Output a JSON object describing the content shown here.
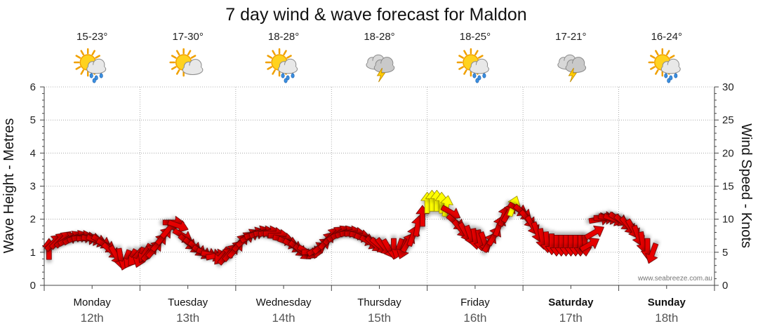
{
  "chart_data": {
    "type": "line",
    "title": "7 day wind & wave forecast for Maldon",
    "ylabel_left": "Wave Height - Metres",
    "ylabel_right": "Wind Speed - Knots",
    "ylim_left": [
      0,
      6
    ],
    "ylim_right": [
      0,
      30
    ],
    "yticks_left": [
      "0",
      "1",
      "2",
      "3",
      "4",
      "5",
      "6"
    ],
    "yticks_right": [
      "0",
      "5",
      "10",
      "15",
      "20",
      "25",
      "30"
    ],
    "grid": true,
    "credit": "www.seabreeze.com.au",
    "days": [
      {
        "name": "Monday",
        "date": "12th",
        "temp": "15-23°",
        "icon": "sun-cloud-rain-icon",
        "bold": false
      },
      {
        "name": "Tuesday",
        "date": "13th",
        "temp": "17-30°",
        "icon": "sun-cloud-icon",
        "bold": false
      },
      {
        "name": "Wednesday",
        "date": "14th",
        "temp": "18-28°",
        "icon": "sun-cloud-rain-icon",
        "bold": false
      },
      {
        "name": "Thursday",
        "date": "15th",
        "temp": "18-28°",
        "icon": "storm-icon",
        "bold": false
      },
      {
        "name": "Friday",
        "date": "16th",
        "temp": "18-25°",
        "icon": "sun-cloud-rain-icon",
        "bold": false
      },
      {
        "name": "Saturday",
        "date": "17th",
        "temp": "17-21°",
        "icon": "storm-icon",
        "bold": true
      },
      {
        "name": "Sunday",
        "date": "18th",
        "temp": "16-24°",
        "icon": "sun-cloud-rain-icon",
        "bold": true
      }
    ],
    "wind_series": {
      "name": "Wind Speed",
      "colors": {
        "normal": "#e60000",
        "strong": "#ffff00",
        "outline": "#660000",
        "outline_strong": "#998800"
      },
      "strong_threshold_knots": 12,
      "points": [
        {
          "t": 0.05,
          "knots": 5.5,
          "dir": 0
        },
        {
          "t": 0.1,
          "knots": 6.5,
          "dir": 45
        },
        {
          "t": 0.15,
          "knots": 6.8,
          "dir": 45
        },
        {
          "t": 0.2,
          "knots": 7.0,
          "dir": 45
        },
        {
          "t": 0.25,
          "knots": 7.0,
          "dir": 60
        },
        {
          "t": 0.3,
          "knots": 7.2,
          "dir": 60
        },
        {
          "t": 0.35,
          "knots": 7.3,
          "dir": 70
        },
        {
          "t": 0.4,
          "knots": 7.3,
          "dir": 80
        },
        {
          "t": 0.45,
          "knots": 7.1,
          "dir": 90
        },
        {
          "t": 0.5,
          "knots": 7.0,
          "dir": 100
        },
        {
          "t": 0.55,
          "knots": 6.8,
          "dir": 110
        },
        {
          "t": 0.6,
          "knots": 6.6,
          "dir": 120
        },
        {
          "t": 0.65,
          "knots": 6.0,
          "dir": 120
        },
        {
          "t": 0.7,
          "knots": 5.2,
          "dir": 130
        },
        {
          "t": 0.75,
          "knots": 4.5,
          "dir": 150
        },
        {
          "t": 0.8,
          "knots": 4.0,
          "dir": 170
        },
        {
          "t": 0.85,
          "knots": 3.8,
          "dir": 200
        },
        {
          "t": 0.9,
          "knots": 4.0,
          "dir": 210
        },
        {
          "t": 0.95,
          "knots": 4.2,
          "dir": 220
        },
        {
          "t": 1.0,
          "knots": 4.2,
          "dir": 200
        },
        {
          "t": 1.05,
          "knots": 4.8,
          "dir": 210
        },
        {
          "t": 1.1,
          "knots": 5.0,
          "dir": 40
        },
        {
          "t": 1.15,
          "knots": 5.5,
          "dir": 40
        },
        {
          "t": 1.2,
          "knots": 6.5,
          "dir": 40
        },
        {
          "t": 1.25,
          "knots": 7.5,
          "dir": 40
        },
        {
          "t": 1.3,
          "knots": 8.5,
          "dir": 40
        },
        {
          "t": 1.35,
          "knots": 9.5,
          "dir": 90
        },
        {
          "t": 1.4,
          "knots": 9.0,
          "dir": 110
        },
        {
          "t": 1.45,
          "knots": 7.5,
          "dir": 120
        },
        {
          "t": 1.5,
          "knots": 6.5,
          "dir": 130
        },
        {
          "t": 1.55,
          "knots": 6.0,
          "dir": 130
        },
        {
          "t": 1.6,
          "knots": 5.5,
          "dir": 130
        },
        {
          "t": 1.65,
          "knots": 5.0,
          "dir": 120
        },
        {
          "t": 1.7,
          "knots": 4.8,
          "dir": 110
        },
        {
          "t": 1.75,
          "knots": 4.6,
          "dir": 100
        },
        {
          "t": 1.8,
          "knots": 4.5,
          "dir": 80
        },
        {
          "t": 1.85,
          "knots": 4.4,
          "dir": 220
        },
        {
          "t": 1.9,
          "knots": 4.5,
          "dir": 40
        },
        {
          "t": 1.95,
          "knots": 5.0,
          "dir": 40
        },
        {
          "t": 2.0,
          "knots": 5.5,
          "dir": 40
        },
        {
          "t": 2.05,
          "knots": 6.5,
          "dir": 40
        },
        {
          "t": 2.1,
          "knots": 7.0,
          "dir": 50
        },
        {
          "t": 2.15,
          "knots": 7.5,
          "dir": 60
        },
        {
          "t": 2.2,
          "knots": 7.8,
          "dir": 70
        },
        {
          "t": 2.25,
          "knots": 8.0,
          "dir": 70
        },
        {
          "t": 2.3,
          "knots": 8.0,
          "dir": 80
        },
        {
          "t": 2.35,
          "knots": 8.0,
          "dir": 80
        },
        {
          "t": 2.4,
          "knots": 7.8,
          "dir": 90
        },
        {
          "t": 2.45,
          "knots": 7.5,
          "dir": 90
        },
        {
          "t": 2.5,
          "knots": 7.0,
          "dir": 100
        },
        {
          "t": 2.55,
          "knots": 6.5,
          "dir": 110
        },
        {
          "t": 2.6,
          "knots": 6.0,
          "dir": 120
        },
        {
          "t": 2.65,
          "knots": 5.5,
          "dir": 130
        },
        {
          "t": 2.7,
          "knots": 5.0,
          "dir": 130
        },
        {
          "t": 2.75,
          "knots": 5.0,
          "dir": 120
        },
        {
          "t": 2.8,
          "knots": 5.0,
          "dir": 90
        },
        {
          "t": 2.85,
          "knots": 5.5,
          "dir": 60
        },
        {
          "t": 2.9,
          "knots": 6.0,
          "dir": 50
        },
        {
          "t": 2.95,
          "knots": 6.8,
          "dir": 40
        },
        {
          "t": 3.0,
          "knots": 7.5,
          "dir": 40
        },
        {
          "t": 3.05,
          "knots": 7.8,
          "dir": 50
        },
        {
          "t": 3.1,
          "knots": 8.0,
          "dir": 60
        },
        {
          "t": 3.15,
          "knots": 8.0,
          "dir": 70
        },
        {
          "t": 3.2,
          "knots": 8.0,
          "dir": 80
        },
        {
          "t": 3.25,
          "knots": 7.8,
          "dir": 90
        },
        {
          "t": 3.3,
          "knots": 7.5,
          "dir": 100
        },
        {
          "t": 3.35,
          "knots": 7.0,
          "dir": 110
        },
        {
          "t": 3.4,
          "knots": 6.5,
          "dir": 120
        },
        {
          "t": 3.45,
          "knots": 6.2,
          "dir": 130
        },
        {
          "t": 3.5,
          "knots": 6.0,
          "dir": 130
        },
        {
          "t": 3.55,
          "knots": 5.8,
          "dir": 140
        },
        {
          "t": 3.6,
          "knots": 5.5,
          "dir": 150
        },
        {
          "t": 3.65,
          "knots": 5.5,
          "dir": 180
        },
        {
          "t": 3.7,
          "knots": 5.5,
          "dir": 200
        },
        {
          "t": 3.75,
          "knots": 5.5,
          "dir": 200
        },
        {
          "t": 3.8,
          "knots": 6.5,
          "dir": 30
        },
        {
          "t": 3.85,
          "knots": 7.5,
          "dir": 20
        },
        {
          "t": 3.9,
          "knots": 9.0,
          "dir": 10
        },
        {
          "t": 3.95,
          "knots": 10.5,
          "dir": 0
        },
        {
          "t": 4.0,
          "knots": 12.5,
          "dir": 0
        },
        {
          "t": 4.05,
          "knots": 12.8,
          "dir": 0
        },
        {
          "t": 4.1,
          "knots": 12.8,
          "dir": 0
        },
        {
          "t": 4.15,
          "knots": 12.5,
          "dir": 0
        },
        {
          "t": 4.2,
          "knots": 12.0,
          "dir": 10
        },
        {
          "t": 4.25,
          "knots": 11.0,
          "dir": 120
        },
        {
          "t": 4.3,
          "knots": 9.5,
          "dir": 130
        },
        {
          "t": 4.35,
          "knots": 8.5,
          "dir": 140
        },
        {
          "t": 4.4,
          "knots": 8.0,
          "dir": 150
        },
        {
          "t": 4.45,
          "knots": 7.5,
          "dir": 160
        },
        {
          "t": 4.5,
          "knots": 7.0,
          "dir": 170
        },
        {
          "t": 4.55,
          "knots": 6.8,
          "dir": 170
        },
        {
          "t": 4.6,
          "knots": 6.5,
          "dir": 160
        },
        {
          "t": 4.65,
          "knots": 6.5,
          "dir": 30
        },
        {
          "t": 4.7,
          "knots": 7.5,
          "dir": 30
        },
        {
          "t": 4.75,
          "knots": 9.0,
          "dir": 20
        },
        {
          "t": 4.8,
          "knots": 10.5,
          "dir": 20
        },
        {
          "t": 4.85,
          "knots": 11.0,
          "dir": 30
        },
        {
          "t": 4.9,
          "knots": 12.0,
          "dir": 20
        },
        {
          "t": 4.95,
          "knots": 11.5,
          "dir": 120
        },
        {
          "t": 5.0,
          "knots": 11.0,
          "dir": 130
        },
        {
          "t": 5.05,
          "knots": 10.0,
          "dir": 140
        },
        {
          "t": 5.1,
          "knots": 9.0,
          "dir": 150
        },
        {
          "t": 5.15,
          "knots": 8.0,
          "dir": 160
        },
        {
          "t": 5.2,
          "knots": 7.0,
          "dir": 170
        },
        {
          "t": 5.25,
          "knots": 6.5,
          "dir": 175
        },
        {
          "t": 5.3,
          "knots": 6.2,
          "dir": 180
        },
        {
          "t": 5.35,
          "knots": 6.0,
          "dir": 180
        },
        {
          "t": 5.4,
          "knots": 6.0,
          "dir": 180
        },
        {
          "t": 5.45,
          "knots": 6.0,
          "dir": 180
        },
        {
          "t": 5.5,
          "knots": 6.0,
          "dir": 180
        },
        {
          "t": 5.55,
          "knots": 6.0,
          "dir": 180
        },
        {
          "t": 5.6,
          "knots": 6.0,
          "dir": 180
        },
        {
          "t": 5.65,
          "knots": 6.0,
          "dir": 175
        },
        {
          "t": 5.7,
          "knots": 6.2,
          "dir": 60
        },
        {
          "t": 5.75,
          "knots": 8.0,
          "dir": 60
        },
        {
          "t": 5.8,
          "knots": 10.0,
          "dir": 80
        },
        {
          "t": 5.85,
          "knots": 10.2,
          "dir": 90
        },
        {
          "t": 5.9,
          "knots": 10.2,
          "dir": 100
        },
        {
          "t": 5.95,
          "knots": 10.0,
          "dir": 110
        },
        {
          "t": 6.0,
          "knots": 10.0,
          "dir": 120
        },
        {
          "t": 6.05,
          "knots": 9.5,
          "dir": 130
        },
        {
          "t": 6.1,
          "knots": 9.0,
          "dir": 140
        },
        {
          "t": 6.15,
          "knots": 8.5,
          "dir": 150
        },
        {
          "t": 6.2,
          "knots": 7.5,
          "dir": 160
        },
        {
          "t": 6.25,
          "knots": 6.5,
          "dir": 170
        },
        {
          "t": 6.3,
          "knots": 5.5,
          "dir": 180
        },
        {
          "t": 6.35,
          "knots": 4.8,
          "dir": 200
        }
      ]
    }
  }
}
